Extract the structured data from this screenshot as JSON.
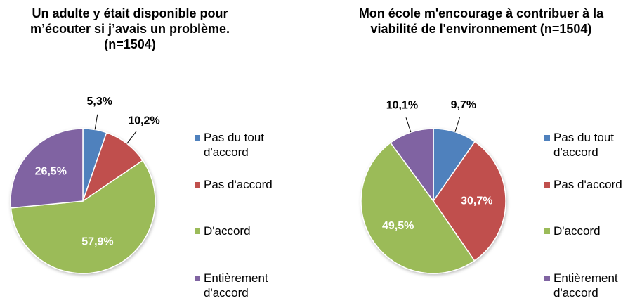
{
  "chart_data": [
    {
      "type": "pie",
      "title": "Un adulte y était disponible pour m’écouter si j’avais un problème. (n=1504)",
      "categories": [
        "Pas du tout d'accord",
        "Pas d'accord",
        "D'accord",
        "Entièrement d'accord"
      ],
      "values": [
        5.3,
        10.2,
        57.9,
        26.5
      ],
      "value_labels": [
        "5,3%",
        "10,2%",
        "57,9%",
        "26,5%"
      ],
      "colors": [
        "#4f81bd",
        "#c0504d",
        "#9bbb59",
        "#8064a2"
      ],
      "legend": "right"
    },
    {
      "type": "pie",
      "title": "Mon école m'encourage à contribuer à la viabilité de l'environnement (n=1504)",
      "categories": [
        "Pas du tout d'accord",
        "Pas d'accord",
        "D'accord",
        "Entièrement d'accord"
      ],
      "values": [
        9.7,
        30.7,
        49.5,
        10.1
      ],
      "value_labels": [
        "9,7%",
        "30,7%",
        "49,5%",
        "10,1%"
      ],
      "colors": [
        "#4f81bd",
        "#c0504d",
        "#9bbb59",
        "#8064a2"
      ],
      "legend": "right"
    }
  ]
}
